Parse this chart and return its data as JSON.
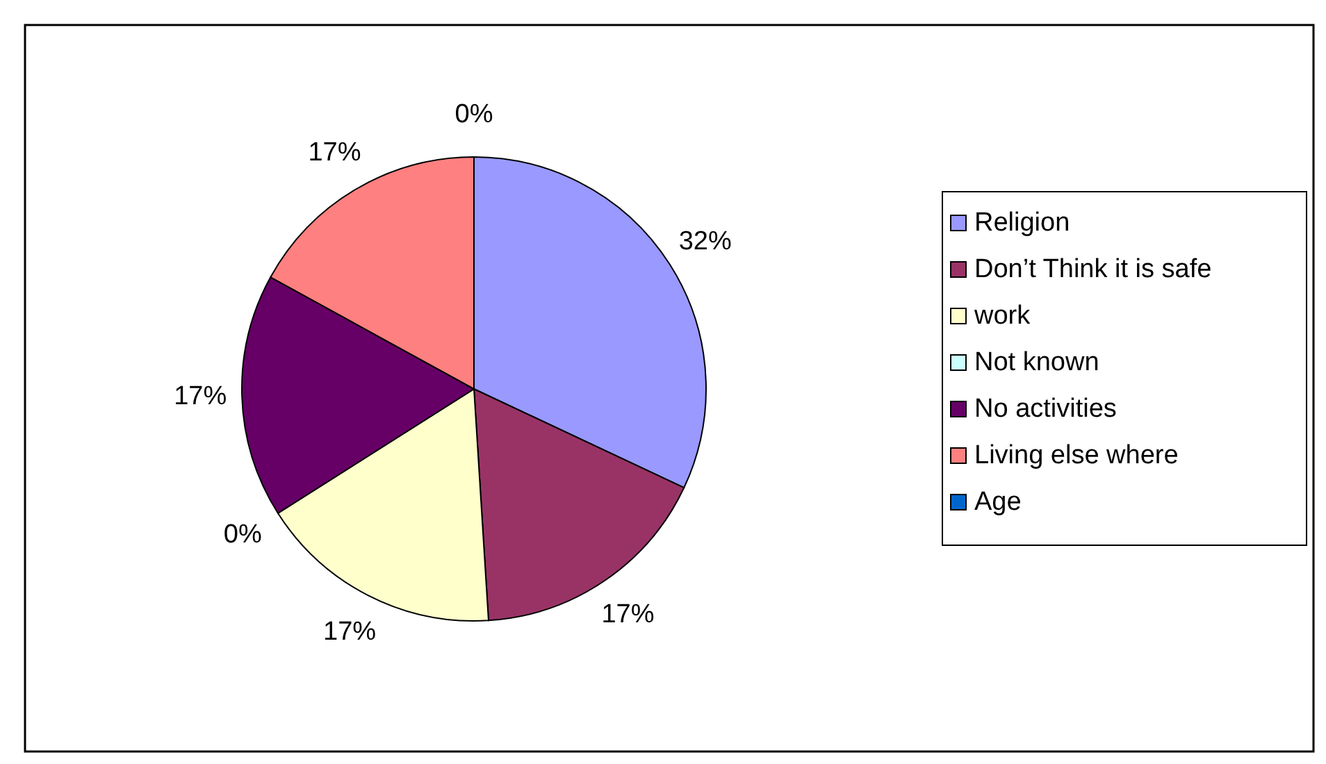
{
  "chart_data": {
    "type": "pie",
    "categories": [
      "Religion",
      "Don’t Think it is safe",
      "work",
      "Not known",
      "No activities",
      "Living else where",
      "Age"
    ],
    "values": [
      32,
      17,
      17,
      0,
      17,
      17,
      0
    ],
    "colors": [
      "#9999ff",
      "#993366",
      "#ffffcc",
      "#ccffff",
      "#660066",
      "#ff8080",
      "#0066cc"
    ],
    "value_labels": [
      "32%",
      "17%",
      "17%",
      "0%",
      "17%",
      "17%",
      "0%"
    ],
    "legend": "right"
  }
}
